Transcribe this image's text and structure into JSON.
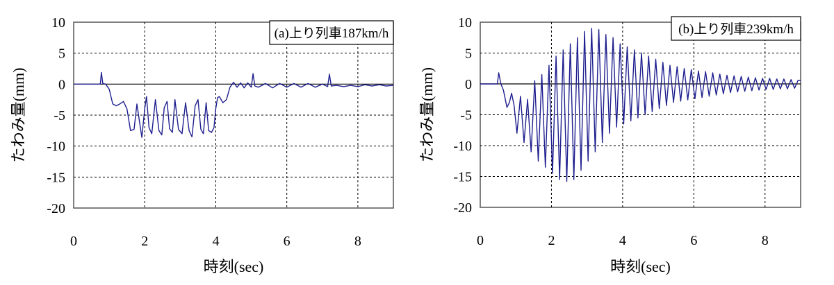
{
  "chart_data": [
    {
      "type": "line",
      "annotation": "(a)上り列車187km/h",
      "xlabel": "時刻(sec)",
      "ylabel": "たわみ量(mm)",
      "xlim": [
        0,
        9
      ],
      "ylim": [
        -20,
        10
      ],
      "xticks": [
        0,
        2,
        4,
        6,
        8
      ],
      "yticks": [
        10,
        5,
        0,
        -5,
        -10,
        -15,
        -20
      ],
      "x_tick_labels": [
        "0",
        "2",
        "4",
        "6",
        "8"
      ],
      "y_tick_labels": [
        "10",
        "5",
        "0",
        "-5",
        "-10",
        "-15",
        "-20"
      ],
      "grid": true,
      "series_color": "#1f1f8f",
      "x": [
        0,
        0.6,
        0.75,
        0.78,
        0.82,
        0.9,
        1.0,
        1.1,
        1.2,
        1.3,
        1.4,
        1.5,
        1.6,
        1.7,
        1.78,
        1.85,
        1.92,
        2.0,
        2.05,
        2.12,
        2.2,
        2.3,
        2.4,
        2.48,
        2.55,
        2.63,
        2.7,
        2.78,
        2.85,
        2.95,
        3.05,
        3.15,
        3.25,
        3.33,
        3.42,
        3.5,
        3.58,
        3.65,
        3.73,
        3.8,
        3.88,
        3.95,
        4.0,
        4.05,
        4.1,
        4.2,
        4.3,
        4.4,
        4.5,
        4.6,
        4.7,
        4.8,
        4.9,
        5.0,
        5.05,
        5.1,
        5.2,
        5.4,
        5.6,
        5.8,
        6.0,
        6.2,
        6.4,
        6.6,
        6.8,
        7.0,
        7.15,
        7.2,
        7.25,
        7.4,
        7.6,
        7.8,
        8.0,
        8.2,
        8.4,
        8.6,
        8.8,
        9.0
      ],
      "y": [
        0,
        0,
        0,
        1.9,
        0.1,
        0,
        -0.8,
        -3.2,
        -3.5,
        -3.2,
        -2.8,
        -4.0,
        -7.5,
        -7.3,
        -3.2,
        -6.0,
        -8.6,
        -4.0,
        -2.0,
        -7.0,
        -8.0,
        -2.5,
        -7.5,
        -8.2,
        -3.8,
        -2.8,
        -7.2,
        -7.8,
        -2.5,
        -7.3,
        -8.0,
        -3.0,
        -7.5,
        -8.5,
        -3.5,
        -2.5,
        -7.3,
        -8.0,
        -3.0,
        -7.5,
        -7.8,
        -7.0,
        -4.0,
        -2.2,
        -2.0,
        -3.0,
        -2.5,
        -0.5,
        0.3,
        -0.5,
        0.2,
        -0.6,
        0.2,
        -0.5,
        1.7,
        -0.3,
        -0.5,
        0.1,
        -0.6,
        0.1,
        -0.5,
        0.1,
        -0.5,
        0.1,
        -0.5,
        0,
        -0.4,
        1.6,
        -0.3,
        -0.2,
        -0.4,
        -0.2,
        -0.4,
        -0.1,
        -0.3,
        -0.1,
        -0.3,
        -0.2
      ]
    },
    {
      "type": "line",
      "annotation": "(b)上り列車239km/h",
      "xlabel": "時刻(sec)",
      "ylabel": "たわみ量(mm)",
      "xlim": [
        0,
        9
      ],
      "ylim": [
        -20,
        10
      ],
      "xticks": [
        0,
        2,
        4,
        6,
        8
      ],
      "yticks": [
        10,
        5,
        0,
        -5,
        -10,
        -15,
        -20
      ],
      "x_tick_labels": [
        "0",
        "2",
        "4",
        "6",
        "8"
      ],
      "y_tick_labels": [
        "10",
        "5",
        "0",
        "-5",
        "-10",
        "-15",
        "-20"
      ],
      "grid": true,
      "series_color": "#1f1f8f",
      "x": [
        0,
        0.4,
        0.48,
        0.52,
        0.58,
        0.65,
        0.75,
        0.82,
        0.88,
        0.95,
        1.03,
        1.13,
        1.23,
        1.33,
        1.43,
        1.53,
        1.63,
        1.73,
        1.83,
        1.93,
        2.03,
        2.13,
        2.23,
        2.33,
        2.43,
        2.53,
        2.63,
        2.73,
        2.83,
        2.93,
        3.03,
        3.13,
        3.23,
        3.33,
        3.43,
        3.53,
        3.63,
        3.73,
        3.83,
        3.93,
        4.03,
        4.13,
        4.23,
        4.33,
        4.43,
        4.53,
        4.63,
        4.73,
        4.83,
        4.93,
        5.03,
        5.13,
        5.23,
        5.33,
        5.43,
        5.53,
        5.63,
        5.73,
        5.83,
        5.93,
        6.03,
        6.13,
        6.23,
        6.33,
        6.43,
        6.53,
        6.63,
        6.73,
        6.83,
        6.93,
        7.03,
        7.13,
        7.23,
        7.33,
        7.43,
        7.53,
        7.63,
        7.73,
        7.83,
        7.93,
        8.03,
        8.13,
        8.23,
        8.33,
        8.43,
        8.53,
        8.63,
        8.73,
        8.83,
        8.93,
        9.0
      ],
      "y": [
        0,
        0,
        0,
        1.8,
        0,
        -1.0,
        -3.8,
        -3.0,
        -1.5,
        -3.5,
        -8.0,
        -2.0,
        -9.5,
        -2.5,
        -11.0,
        0.5,
        -12.5,
        1.5,
        -13.5,
        3.0,
        -14.5,
        4.5,
        -15.5,
        5.5,
        -15.8,
        6.5,
        -15.5,
        7.5,
        -14.0,
        8.5,
        -12.5,
        9.0,
        -11.0,
        8.8,
        -9.5,
        8.0,
        -8.0,
        7.5,
        -7.0,
        6.5,
        -6.5,
        6.0,
        -6.0,
        5.5,
        -5.5,
        5.0,
        -5.0,
        4.5,
        -4.5,
        4.0,
        -4.0,
        3.5,
        -3.5,
        3.0,
        -3.0,
        2.8,
        -2.8,
        2.5,
        -2.6,
        2.3,
        -2.4,
        2.1,
        -2.2,
        2.0,
        -2.0,
        1.8,
        -1.8,
        1.6,
        -1.6,
        1.4,
        -1.4,
        1.3,
        -1.3,
        1.2,
        -1.2,
        1.1,
        -1.1,
        1.0,
        -1.0,
        0.9,
        -0.9,
        0.9,
        -0.9,
        0.8,
        -0.8,
        0.8,
        -0.8,
        0.7,
        -0.7,
        0.6,
        0.5
      ]
    }
  ]
}
